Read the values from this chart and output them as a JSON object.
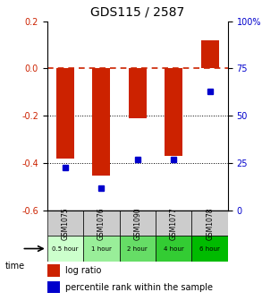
{
  "title": "GDS115 / 2587",
  "samples": [
    "GSM1075",
    "GSM1076",
    "GSM1090",
    "GSM1077",
    "GSM1078"
  ],
  "time_labels": [
    "0.5 hour",
    "1 hour",
    "2 hour",
    "4 hour",
    "6 hour"
  ],
  "time_colors": [
    "#ccffcc",
    "#99ee99",
    "#66dd66",
    "#33cc33",
    "#00bb00"
  ],
  "log_ratios": [
    -0.38,
    -0.45,
    -0.21,
    -0.37,
    0.12
  ],
  "percentile_ranks": [
    23,
    12,
    27,
    27,
    63
  ],
  "ylim_left": [
    -0.6,
    0.2
  ],
  "ylim_right": [
    0,
    100
  ],
  "bar_color": "#cc2200",
  "dot_color": "#0000cc",
  "bar_width": 0.5,
  "yticks_left": [
    -0.6,
    -0.4,
    -0.2,
    0.0,
    0.2
  ],
  "yticks_right": [
    0,
    25,
    50,
    75,
    100
  ],
  "zero_line_color": "#cc2200",
  "grid_color": "#000000",
  "background_color": "#ffffff",
  "legend_log_label": "log ratio",
  "legend_pct_label": "percentile rank within the sample"
}
